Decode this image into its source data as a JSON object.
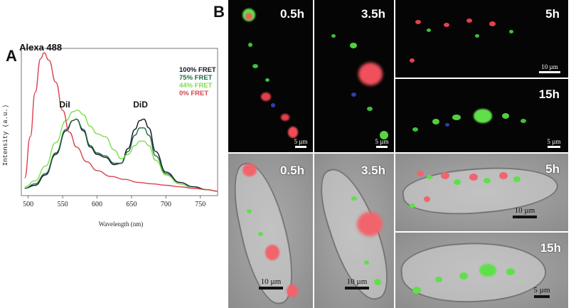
{
  "panels": {
    "a_label": "A",
    "b_label": "B"
  },
  "chart_data": {
    "type": "line",
    "xlabel": "Wavelength (nm)",
    "ylabel": "Intensity (a.u.)",
    "xlim": [
      490,
      775
    ],
    "xticks": [
      500,
      550,
      600,
      650,
      700,
      750
    ],
    "ylim": [
      0,
      1.0
    ],
    "grid": false,
    "legend_position": "top-right",
    "annotations": [
      {
        "text": "Alexa 488",
        "x": 518,
        "y": 0.985
      },
      {
        "text": "DiI",
        "x": 553,
        "y": 0.6
      },
      {
        "text": "DiD",
        "x": 663,
        "y": 0.6
      }
    ],
    "series": [
      {
        "name": "100% FRET",
        "color": "#111827",
        "x": [
          495,
          510,
          525,
          540,
          555,
          565,
          570,
          580,
          590,
          600,
          612,
          625,
          635,
          645,
          655,
          662,
          668,
          675,
          685,
          700,
          720,
          740,
          760,
          775
        ],
        "y": [
          0.05,
          0.07,
          0.14,
          0.28,
          0.44,
          0.51,
          0.52,
          0.44,
          0.33,
          0.28,
          0.26,
          0.21,
          0.22,
          0.32,
          0.45,
          0.51,
          0.52,
          0.46,
          0.3,
          0.16,
          0.09,
          0.06,
          0.04,
          0.03
        ]
      },
      {
        "name": "75% FRET",
        "color": "#1f6b3e",
        "x": [
          495,
          510,
          525,
          540,
          555,
          565,
          570,
          580,
          590,
          600,
          612,
          625,
          635,
          645,
          655,
          662,
          668,
          675,
          685,
          700,
          720,
          740,
          760,
          775
        ],
        "y": [
          0.05,
          0.08,
          0.15,
          0.29,
          0.45,
          0.51,
          0.52,
          0.45,
          0.34,
          0.29,
          0.27,
          0.22,
          0.22,
          0.3,
          0.41,
          0.46,
          0.46,
          0.41,
          0.27,
          0.15,
          0.08,
          0.05,
          0.04,
          0.03
        ]
      },
      {
        "name": "44% FRET",
        "color": "#7ddc4c",
        "x": [
          495,
          510,
          525,
          540,
          555,
          565,
          572,
          580,
          590,
          600,
          612,
          625,
          635,
          645,
          655,
          662,
          668,
          675,
          685,
          700,
          720,
          740,
          760,
          775
        ],
        "y": [
          0.06,
          0.1,
          0.2,
          0.36,
          0.51,
          0.57,
          0.58,
          0.55,
          0.47,
          0.42,
          0.4,
          0.31,
          0.25,
          0.28,
          0.34,
          0.37,
          0.37,
          0.34,
          0.24,
          0.14,
          0.08,
          0.05,
          0.04,
          0.03
        ]
      },
      {
        "name": "0% FRET",
        "color": "#d9434e",
        "x": [
          495,
          503,
          510,
          518,
          523,
          530,
          540,
          550,
          560,
          570,
          585,
          600,
          620,
          640,
          660,
          680,
          700,
          720,
          740,
          760,
          775
        ],
        "y": [
          0.12,
          0.4,
          0.7,
          0.93,
          0.97,
          0.92,
          0.77,
          0.58,
          0.43,
          0.33,
          0.23,
          0.17,
          0.13,
          0.11,
          0.09,
          0.08,
          0.07,
          0.06,
          0.05,
          0.04,
          0.03
        ]
      }
    ]
  },
  "micrographs": {
    "fluorescence": [
      {
        "time": "0.5h",
        "scale": "5 µm"
      },
      {
        "time": "3.5h",
        "scale": "5 µm"
      },
      {
        "time": "5h",
        "scale": "10 µm"
      },
      {
        "time": "15h",
        "scale": "5 µm"
      }
    ],
    "merged": [
      {
        "time": "0.5h",
        "scale": "10 µm"
      },
      {
        "time": "3.5h",
        "scale": "10 µm"
      },
      {
        "time": "5h",
        "scale": "10 µm"
      },
      {
        "time": "15h",
        "scale": "5 µm"
      }
    ]
  }
}
